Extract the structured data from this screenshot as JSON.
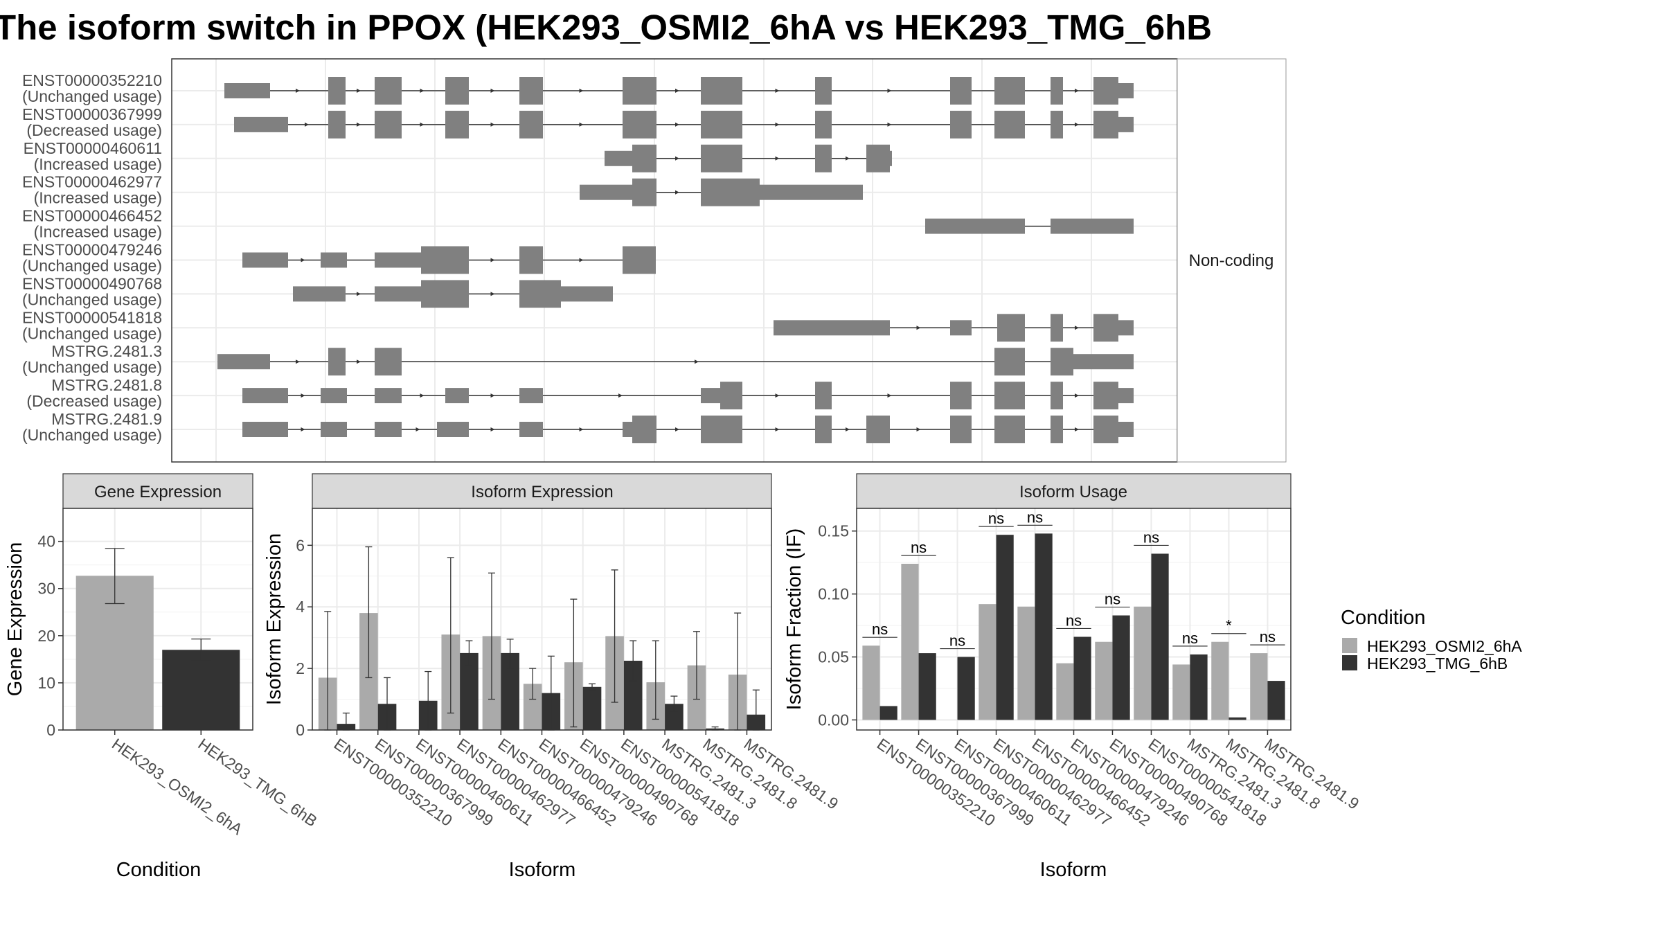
{
  "title": "The isoform switch in PPOX (HEK293_OSMI2_6hA vs HEK293_TMG_6hB",
  "colors": {
    "osmi": "#aaaaaa",
    "tmg": "#333333",
    "exon": "#808080",
    "grid": "#ebebeb",
    "border": "#333333"
  },
  "transcripts": {
    "strip_label": "Non-coding",
    "rows": [
      {
        "id": "ENST00000352210",
        "usage": "(Unchanged usage)"
      },
      {
        "id": "ENST00000367999",
        "usage": "(Decreased usage)"
      },
      {
        "id": "ENST00000460611",
        "usage": "(Increased usage)"
      },
      {
        "id": "ENST00000462977",
        "usage": "(Increased usage)"
      },
      {
        "id": "ENST00000466452",
        "usage": "(Increased usage)"
      },
      {
        "id": "ENST00000479246",
        "usage": "(Unchanged usage)"
      },
      {
        "id": "ENST00000490768",
        "usage": "(Unchanged usage)"
      },
      {
        "id": "ENST00000541818",
        "usage": "(Unchanged usage)"
      },
      {
        "id": "MSTRG.2481.3",
        "usage": "(Unchanged usage)"
      },
      {
        "id": "MSTRG.2481.8",
        "usage": "(Decreased usage)"
      },
      {
        "id": "MSTRG.2481.9",
        "usage": "(Unchanged usage)"
      }
    ]
  },
  "chart_data": [
    {
      "type": "bar",
      "title": "Gene Expression",
      "xlabel": "Condition",
      "ylabel": "Gene Expression",
      "ylim": [
        0,
        47
      ],
      "yticks": [
        0,
        10,
        20,
        30,
        40
      ],
      "categories": [
        "HEK293_OSMI2_6hA",
        "HEK293_TMG_6hB"
      ],
      "values": [
        32.7,
        17.0
      ],
      "error_low": [
        26.8,
        14.7
      ],
      "error_high": [
        38.5,
        19.3
      ]
    },
    {
      "type": "bar",
      "title": "Isoform Expression",
      "xlabel": "Isoform",
      "ylabel": "Isoform Expression",
      "ylim": [
        0,
        7.2
      ],
      "yticks": [
        0,
        2,
        4,
        6
      ],
      "categories": [
        "ENST00000352210",
        "ENST00000367999",
        "ENST00000460611",
        "ENST00000462977",
        "ENST00000466452",
        "ENST00000479246",
        "ENST00000490768",
        "ENST00000541818",
        "MSTRG.2481.3",
        "MSTRG.2481.8",
        "MSTRG.2481.9"
      ],
      "series": [
        {
          "name": "HEK293_OSMI2_6hA",
          "values": [
            1.7,
            3.8,
            0.0,
            3.1,
            3.05,
            1.5,
            2.2,
            3.05,
            1.55,
            2.1,
            1.8
          ],
          "error_low": [
            0.0,
            1.7,
            0.0,
            0.55,
            1.0,
            1.0,
            0.1,
            0.9,
            0.35,
            1.0,
            0.0
          ],
          "error_high": [
            3.85,
            5.95,
            0.0,
            5.6,
            5.1,
            2.0,
            4.25,
            5.2,
            2.9,
            3.2,
            3.8
          ]
        },
        {
          "name": "HEK293_TMG_6hB",
          "values": [
            0.2,
            0.85,
            0.95,
            2.5,
            2.5,
            1.2,
            1.4,
            2.25,
            0.85,
            0.05,
            0.5
          ],
          "error_low": [
            0.0,
            0.0,
            0.0,
            2.1,
            2.0,
            0.0,
            1.3,
            1.6,
            0.6,
            0.0,
            0.0
          ],
          "error_high": [
            0.55,
            1.7,
            1.9,
            2.9,
            2.95,
            2.4,
            1.5,
            2.9,
            1.1,
            0.1,
            1.3
          ]
        }
      ]
    },
    {
      "type": "bar",
      "title": "Isoform Usage",
      "xlabel": "Isoform",
      "ylabel": "Isoform Fraction (IF)",
      "ylim": [
        -0.008,
        0.168
      ],
      "yticks": [
        0.0,
        0.05,
        0.1,
        0.15
      ],
      "ytick_labels": [
        "0.00",
        "0.05",
        "0.10",
        "0.15"
      ],
      "categories": [
        "ENST00000352210",
        "ENST00000367999",
        "ENST00000460611",
        "ENST00000462977",
        "ENST00000466452",
        "ENST00000479246",
        "ENST00000490768",
        "ENST00000541818",
        "MSTRG.2481.3",
        "MSTRG.2481.8",
        "MSTRG.2481.9"
      ],
      "series": [
        {
          "name": "HEK293_OSMI2_6hA",
          "values": [
            0.059,
            0.124,
            0.0,
            0.092,
            0.09,
            0.045,
            0.062,
            0.09,
            0.044,
            0.062,
            0.053
          ]
        },
        {
          "name": "HEK293_TMG_6hB",
          "values": [
            0.011,
            0.053,
            0.05,
            0.147,
            0.148,
            0.066,
            0.083,
            0.132,
            0.052,
            0.002,
            0.031
          ]
        }
      ],
      "significance": [
        "ns",
        "ns",
        "ns",
        "ns",
        "ns",
        "ns",
        "ns",
        "ns",
        "ns",
        "*",
        "ns"
      ]
    }
  ],
  "legend": {
    "title": "Condition",
    "items": [
      "HEK293_OSMI2_6hA",
      "HEK293_TMG_6hB"
    ]
  }
}
